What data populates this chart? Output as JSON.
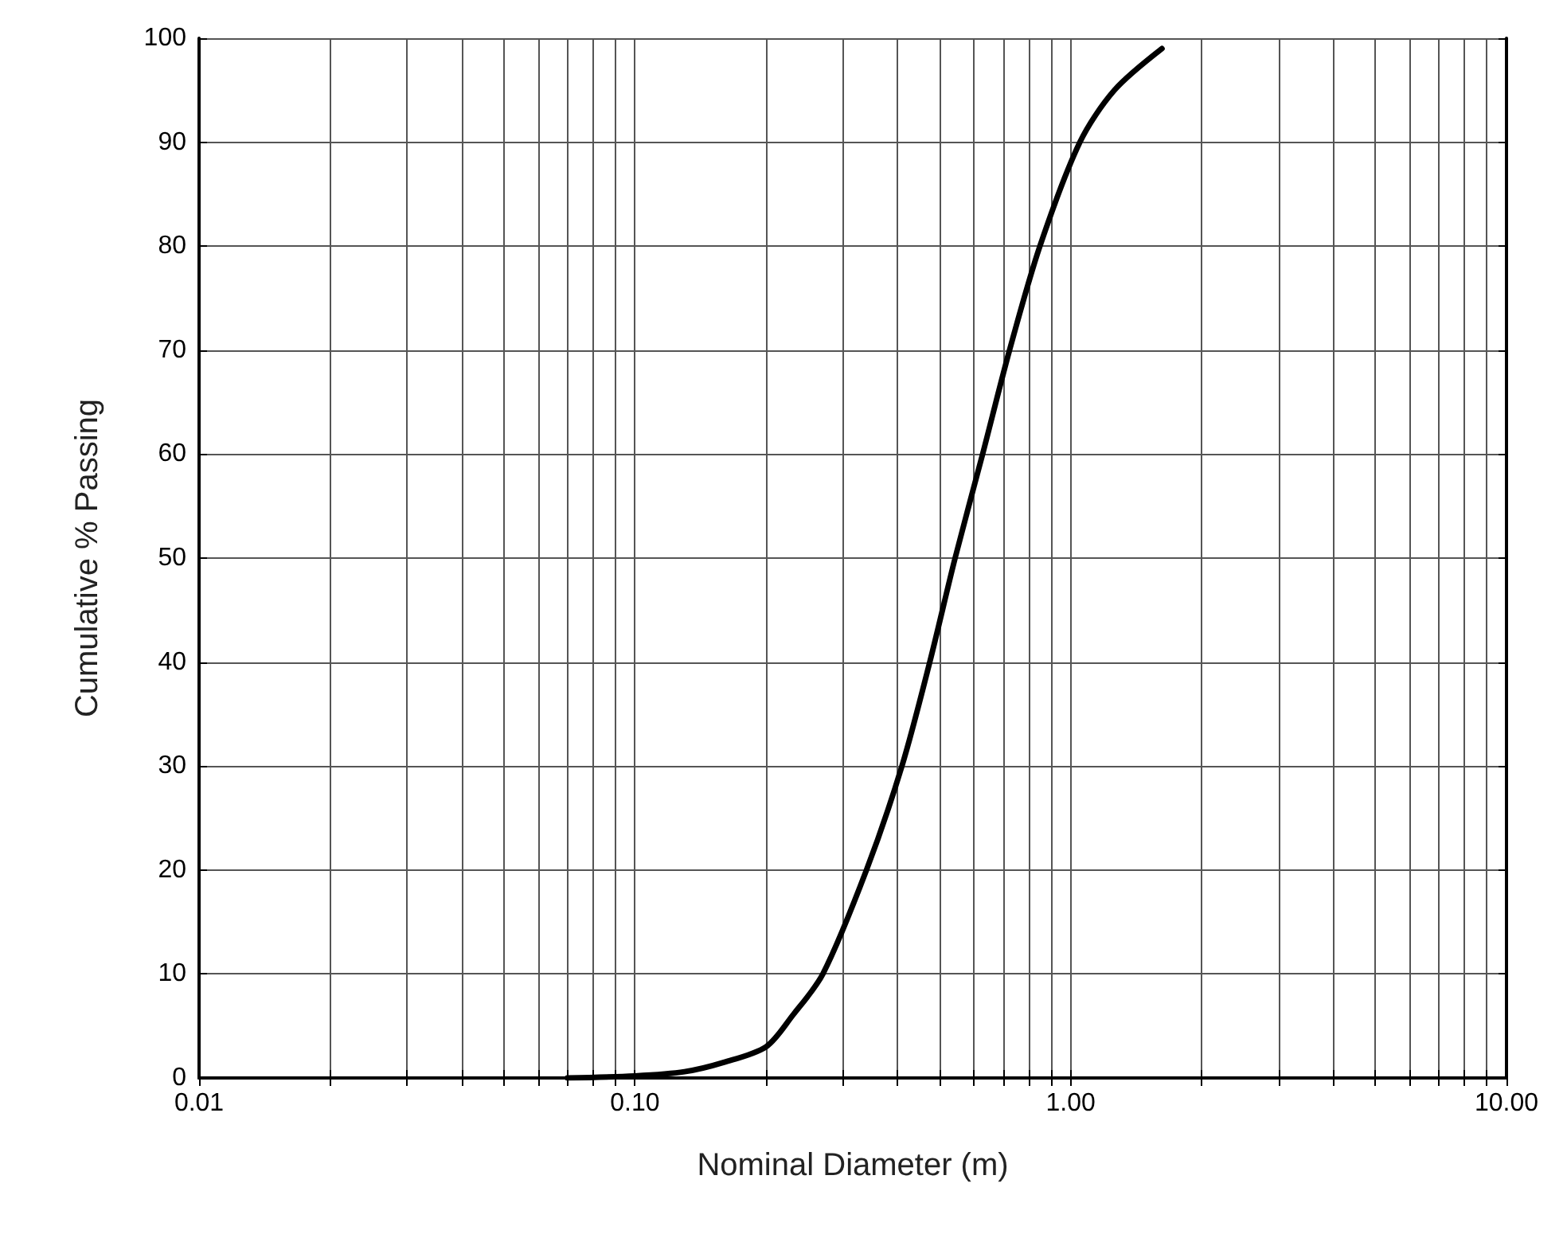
{
  "chart_data": {
    "type": "line",
    "xlabel": "Nominal Diameter (m)",
    "ylabel": "Cumulative % Passing",
    "log": "x",
    "xlim": [
      0.01,
      10
    ],
    "ylim": [
      0,
      100
    ],
    "xticks": [
      {
        "value": 0.01,
        "label": "0.01"
      },
      {
        "value": 0.02,
        "label": null
      },
      {
        "value": 0.03,
        "label": null
      },
      {
        "value": 0.04,
        "label": null
      },
      {
        "value": 0.05,
        "label": null
      },
      {
        "value": 0.06,
        "label": null
      },
      {
        "value": 0.07,
        "label": null
      },
      {
        "value": 0.08,
        "label": null
      },
      {
        "value": 0.09,
        "label": null
      },
      {
        "value": 0.1,
        "label": "0.10"
      },
      {
        "value": 0.2,
        "label": null
      },
      {
        "value": 0.3,
        "label": null
      },
      {
        "value": 0.4,
        "label": null
      },
      {
        "value": 0.5,
        "label": null
      },
      {
        "value": 0.6,
        "label": null
      },
      {
        "value": 0.7,
        "label": null
      },
      {
        "value": 0.8,
        "label": null
      },
      {
        "value": 0.9,
        "label": null
      },
      {
        "value": 1,
        "label": "1.00"
      },
      {
        "value": 2,
        "label": null
      },
      {
        "value": 3,
        "label": null
      },
      {
        "value": 4,
        "label": null
      },
      {
        "value": 5,
        "label": null
      },
      {
        "value": 6,
        "label": null
      },
      {
        "value": 7,
        "label": null
      },
      {
        "value": 8,
        "label": null
      },
      {
        "value": 9,
        "label": null
      },
      {
        "value": 10,
        "label": "10.00"
      }
    ],
    "yticks": [
      0,
      10,
      20,
      30,
      40,
      50,
      60,
      70,
      80,
      90,
      100
    ],
    "grid": true,
    "marker": "none",
    "line_style": "solid",
    "series": [
      {
        "color": "#000000",
        "x": [
          0.07,
          0.1,
          0.13,
          0.16,
          0.2,
          0.23,
          0.27,
          0.34,
          0.41,
          0.475,
          0.543,
          0.628,
          0.724,
          0.85,
          1.05,
          1.26,
          1.62
        ],
        "values": [
          0,
          0.2,
          0.6,
          1.5,
          3,
          6,
          10,
          20,
          30,
          40,
          50,
          60,
          70,
          80,
          90,
          95,
          99
        ]
      }
    ]
  }
}
